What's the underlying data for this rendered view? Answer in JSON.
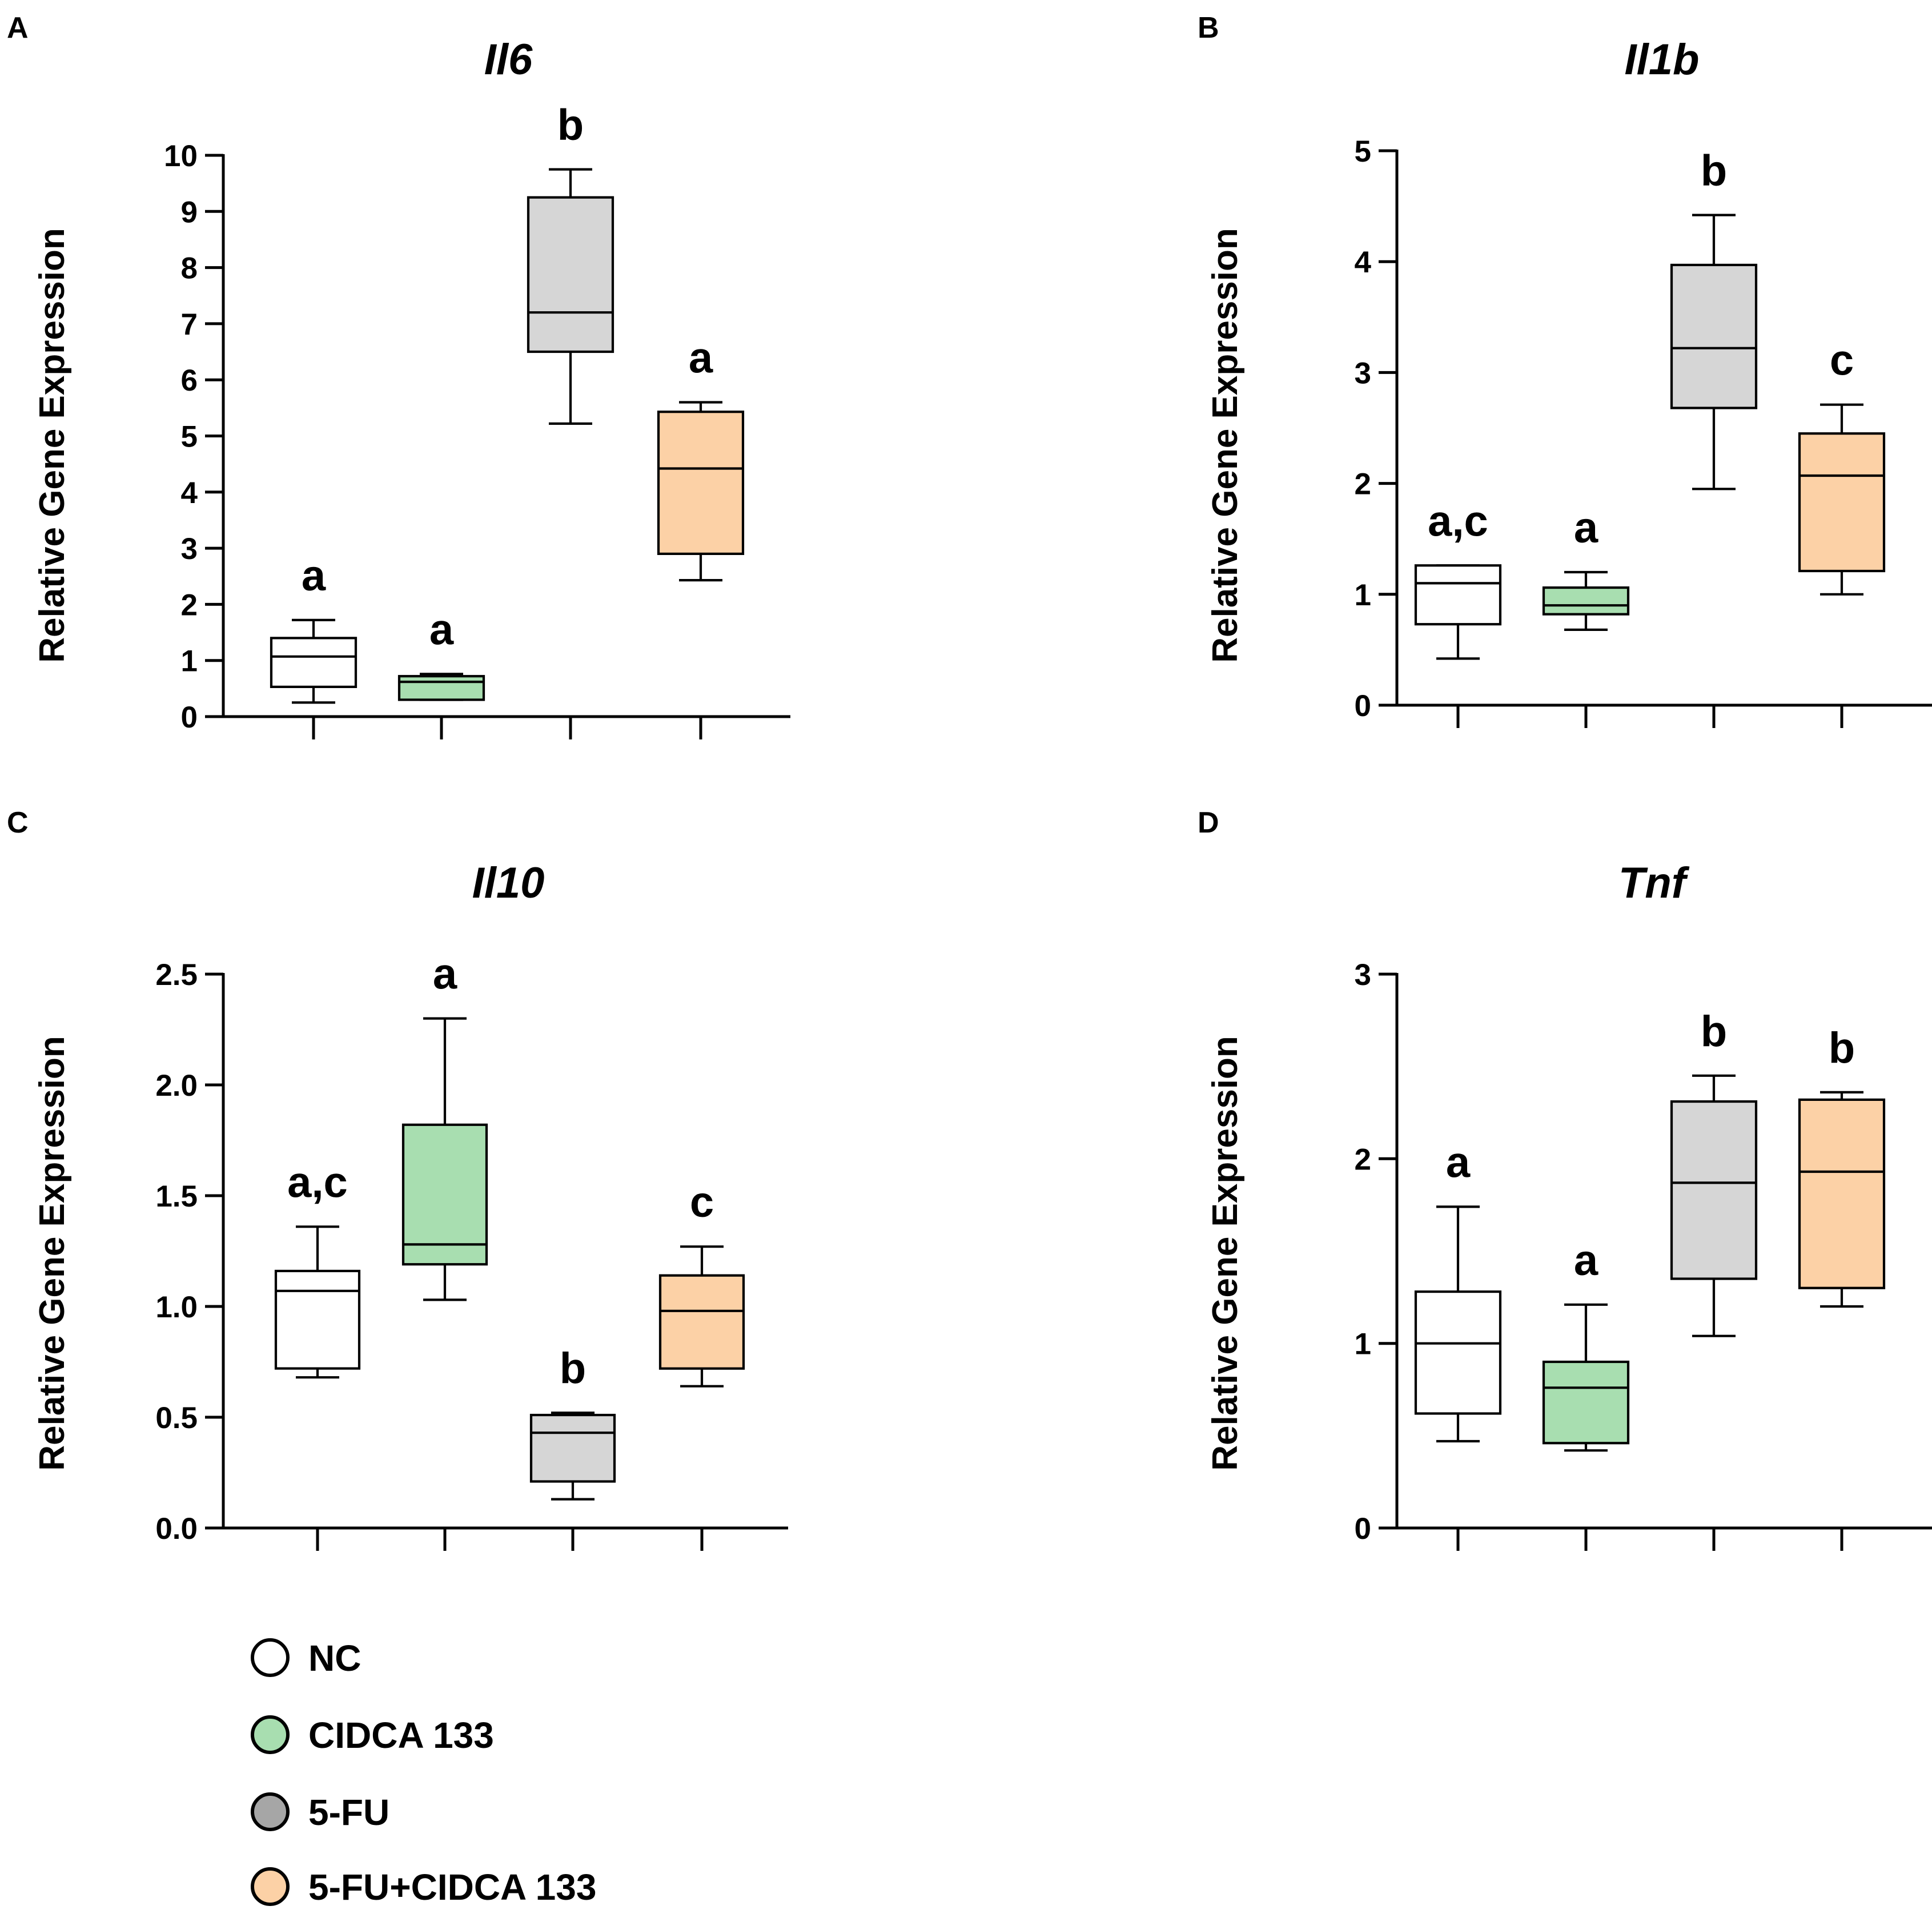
{
  "groups": [
    "NC",
    "CIDCA 133",
    "5-FU",
    "5-FU+CIDCA 133"
  ],
  "colors": {
    "NC": "#ffffff",
    "CIDCA 133": "#a8deb0",
    "5-FU": "#d6d6d6",
    "5-FU+CIDCA 133": "#fcd1a6",
    "legend_5FU": "#a6a6a6",
    "axis": "#000000"
  },
  "legend": {
    "items": [
      {
        "label": "NC",
        "color": "#ffffff"
      },
      {
        "label": "CIDCA 133",
        "color": "#a8deb0"
      },
      {
        "label": "5-FU",
        "color": "#a6a6a6"
      },
      {
        "label": "5-FU+CIDCA 133",
        "color": "#fcd1a6"
      }
    ]
  },
  "chart_data": [
    {
      "type": "box",
      "panel": "A",
      "title": "Il6",
      "ylabel": "Relative Gene Expression",
      "xlabel": "",
      "ylim": [
        0,
        10
      ],
      "yticks": [
        "0",
        "1",
        "2",
        "3",
        "4",
        "5",
        "6",
        "7",
        "8",
        "9",
        "10"
      ],
      "categories": [
        "NC",
        "CIDCA 133",
        "5-FU",
        "5-FU+CIDCA 133"
      ],
      "boxes": [
        {
          "min": 0.25,
          "q1": 0.53,
          "median": 1.07,
          "q3": 1.4,
          "max": 1.72,
          "label": "a"
        },
        {
          "min": 0.3,
          "q1": 0.3,
          "median": 0.62,
          "q3": 0.72,
          "max": 0.76,
          "label": "a"
        },
        {
          "min": 5.22,
          "q1": 6.5,
          "median": 7.2,
          "q3": 9.25,
          "max": 9.75,
          "label": "b"
        },
        {
          "min": 2.43,
          "q1": 2.9,
          "median": 4.42,
          "q3": 5.43,
          "max": 5.6,
          "label": "a"
        }
      ]
    },
    {
      "type": "box",
      "panel": "B",
      "title": "Il1b",
      "ylabel": "Relative Gene Expression",
      "xlabel": "",
      "ylim": [
        0,
        5
      ],
      "yticks": [
        "0",
        "1",
        "2",
        "3",
        "4",
        "5"
      ],
      "categories": [
        "NC",
        "CIDCA 133",
        "5-FU",
        "5-FU+CIDCA 133"
      ],
      "boxes": [
        {
          "min": 0.42,
          "q1": 0.73,
          "median": 1.1,
          "q3": 1.26,
          "max": 1.26,
          "label": "a,c"
        },
        {
          "min": 0.68,
          "q1": 0.82,
          "median": 0.9,
          "q3": 1.06,
          "max": 1.2,
          "label": "a"
        },
        {
          "min": 1.95,
          "q1": 2.68,
          "median": 3.22,
          "q3": 3.97,
          "max": 4.42,
          "label": "b"
        },
        {
          "min": 1.0,
          "q1": 1.21,
          "median": 2.07,
          "q3": 2.45,
          "max": 2.71,
          "label": "c"
        }
      ]
    },
    {
      "type": "box",
      "panel": "C",
      "title": "Il10",
      "ylabel": "Relative Gene Expression",
      "xlabel": "",
      "ylim": [
        0,
        2.5
      ],
      "yticks": [
        "0.0",
        "0.5",
        "1.0",
        "1.5",
        "2.0",
        "2.5"
      ],
      "categories": [
        "NC",
        "CIDCA 133",
        "5-FU",
        "5-FU+CIDCA 133"
      ],
      "boxes": [
        {
          "min": 0.68,
          "q1": 0.72,
          "median": 1.07,
          "q3": 1.16,
          "max": 1.36,
          "label": "a,c"
        },
        {
          "min": 1.03,
          "q1": 1.19,
          "median": 1.28,
          "q3": 1.82,
          "max": 2.3,
          "label": "a"
        },
        {
          "min": 0.13,
          "q1": 0.21,
          "median": 0.43,
          "q3": 0.51,
          "max": 0.52,
          "label": "b"
        },
        {
          "min": 0.64,
          "q1": 0.72,
          "median": 0.98,
          "q3": 1.14,
          "max": 1.27,
          "label": "c"
        }
      ]
    },
    {
      "type": "box",
      "panel": "D",
      "title": "Tnf",
      "ylabel": "Relative Gene Expression",
      "xlabel": "",
      "ylim": [
        0,
        3
      ],
      "yticks": [
        "0",
        "1",
        "2",
        "3"
      ],
      "categories": [
        "NC",
        "CIDCA 133",
        "5-FU",
        "5-FU+CIDCA 133"
      ],
      "boxes": [
        {
          "min": 0.47,
          "q1": 0.62,
          "median": 1.0,
          "q3": 1.28,
          "max": 1.74,
          "label": "a"
        },
        {
          "min": 0.42,
          "q1": 0.46,
          "median": 0.76,
          "q3": 0.9,
          "max": 1.21,
          "label": "a"
        },
        {
          "min": 1.04,
          "q1": 1.35,
          "median": 1.87,
          "q3": 2.31,
          "max": 2.45,
          "label": "b"
        },
        {
          "min": 1.2,
          "q1": 1.3,
          "median": 1.93,
          "q3": 2.32,
          "max": 2.36,
          "label": "b"
        }
      ]
    }
  ]
}
